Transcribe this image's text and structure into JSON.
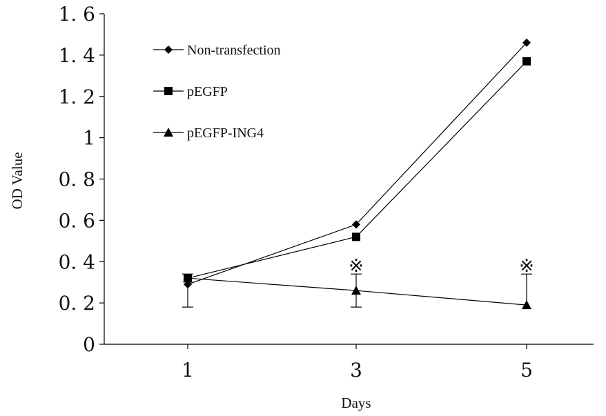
{
  "chart_data": {
    "type": "line",
    "title": "",
    "xlabel": "Days",
    "ylabel": "OD Value",
    "categories": [
      "1",
      "3",
      "5"
    ],
    "x": [
      1,
      3,
      5
    ],
    "ylim": [
      0,
      1.6
    ],
    "yticks": [
      "0",
      "0. 2",
      "0. 4",
      "0. 6",
      "0. 8",
      "1",
      "1. 2",
      "1. 4",
      "1. 6"
    ],
    "grid": false,
    "legend_position": "top-left",
    "series": [
      {
        "name": "Non-transfection",
        "marker": "diamond",
        "values": [
          0.29,
          0.58,
          1.46
        ]
      },
      {
        "name": "pEGFP",
        "marker": "square",
        "values": [
          0.32,
          0.52,
          1.37
        ]
      },
      {
        "name": "pEGFP-ING4",
        "marker": "triangle",
        "values": [
          0.32,
          0.26,
          0.19
        ],
        "error_up": [
          0.02,
          0.08,
          0.15
        ],
        "error_down": [
          0.14,
          0.08,
          0.0
        ]
      }
    ],
    "annotations": [
      {
        "x": 3,
        "text": "※"
      },
      {
        "x": 5,
        "text": "※"
      }
    ],
    "line_color": "#000000"
  }
}
